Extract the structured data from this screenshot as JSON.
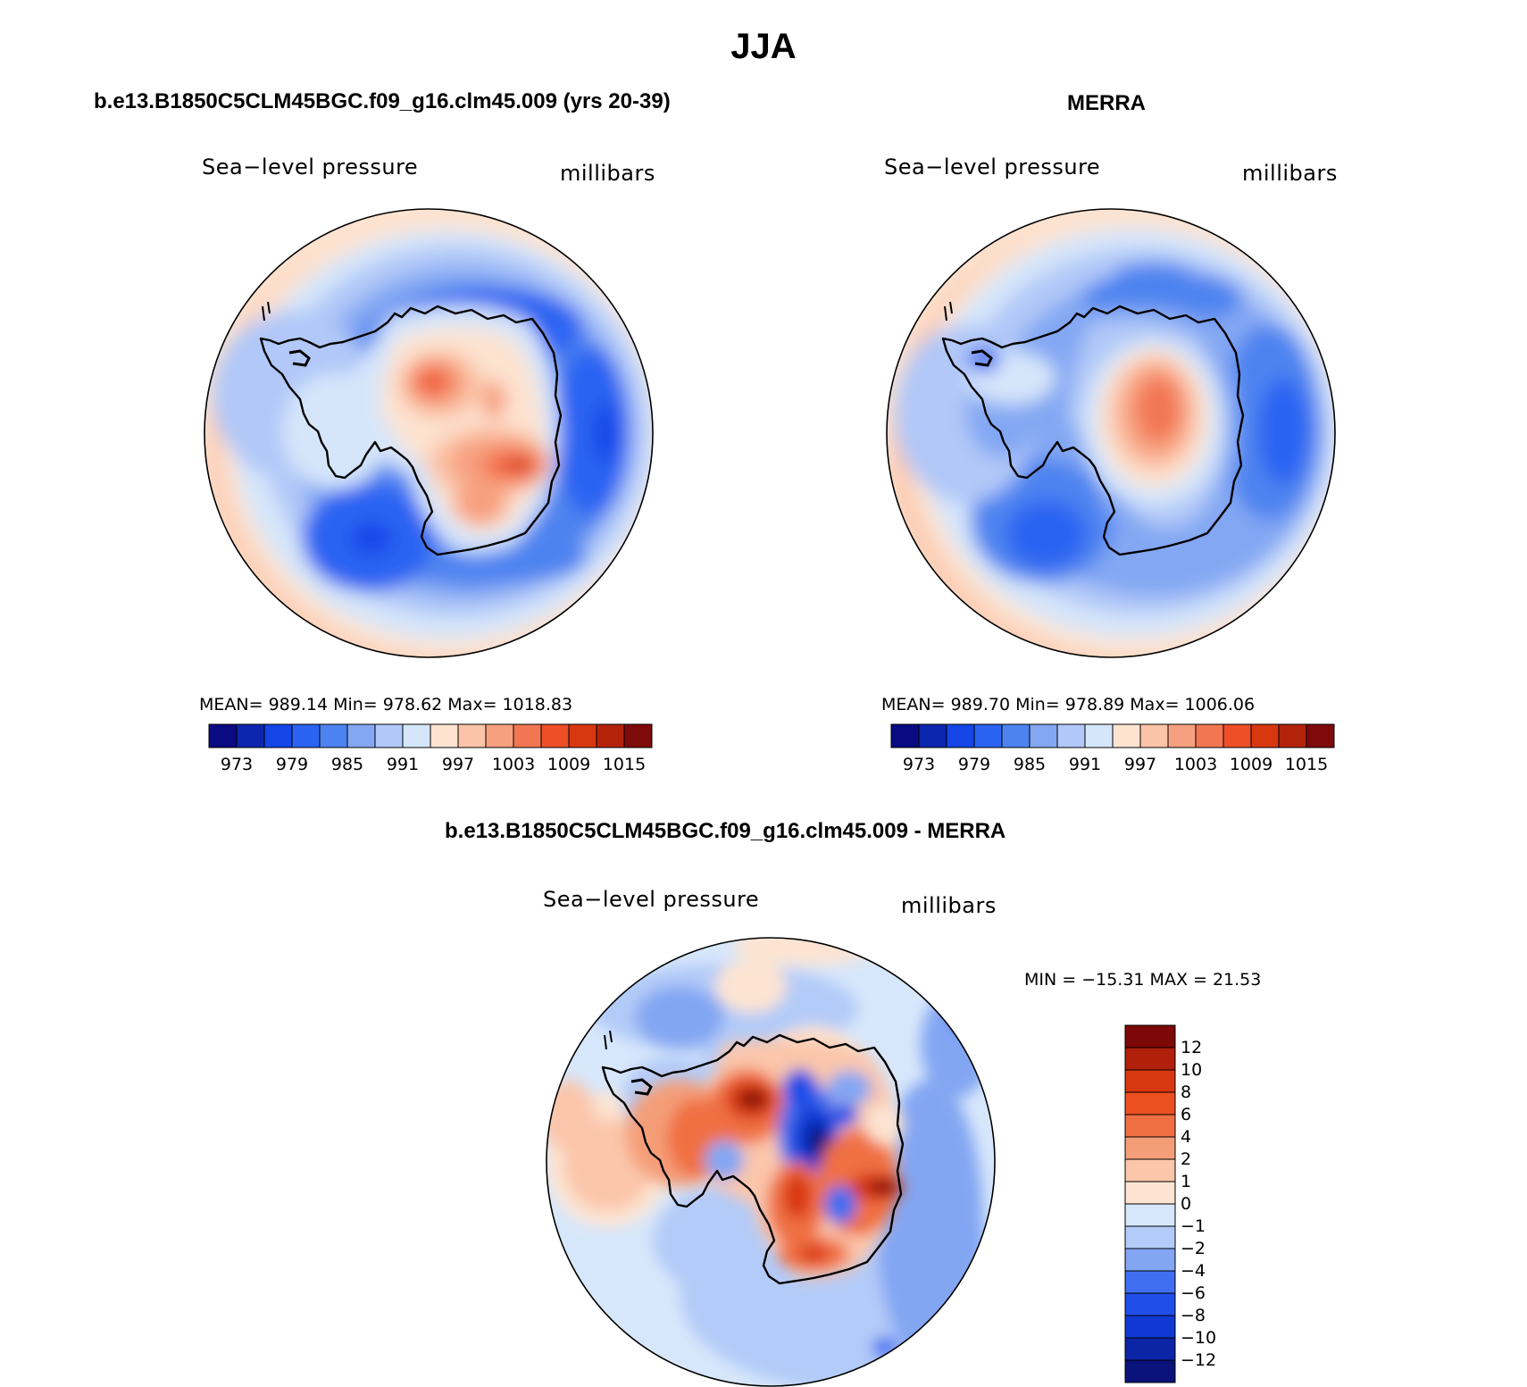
{
  "page": {
    "title": "JJA"
  },
  "panels": [
    {
      "id": "model",
      "title": "b.e13.B1850C5CLM45BGC.f09_g16.clm45.009 (yrs 20-39)",
      "left_label": "Sea−level pressure",
      "right_label": "millibars",
      "stats": "MEAN=  989.14    Min=  978.62    Max=  1018.83"
    },
    {
      "id": "obs",
      "title": "MERRA",
      "left_label": "Sea−level pressure",
      "right_label": "millibars",
      "stats": "MEAN=  989.70    Min=  978.89    Max=  1006.06"
    },
    {
      "id": "diff",
      "title": "b.e13.B1850C5CLM45BGC.f09_g16.clm45.009 - MERRA",
      "left_label": "Sea−level pressure",
      "right_label": "millibars",
      "stats": "MIN  =  −15.31  MAX  =    21.53"
    }
  ],
  "colors": {
    "abs_scale": [
      "#0a0a82",
      "#0d26b0",
      "#1446e8",
      "#2a63f2",
      "#4d83f0",
      "#83a7f3",
      "#b1c8f8",
      "#d6e6fa",
      "#fde3d0",
      "#fbc3a7",
      "#f7a07f",
      "#f27652",
      "#ee4f26",
      "#d8380f",
      "#b3230a",
      "#7f0a0a"
    ],
    "diff_scale": [
      "#09137a",
      "#0c24a6",
      "#1038d2",
      "#1f4ee8",
      "#3f6ef0",
      "#83a6f3",
      "#b3cbf8",
      "#d7e7fb",
      "#fde4d2",
      "#fbc6ab",
      "#f49e78",
      "#f06f42",
      "#ed5021",
      "#d8380f",
      "#b0200a",
      "#7d0808"
    ],
    "land_outline": "#000000"
  },
  "chart_data": [
    {
      "type": "heatmap",
      "projection": "south-polar-stereographic",
      "title": "b.e13.B1850C5CLM45BGC.f09_g16.clm45.009 (yrs 20-39)",
      "variable": "Sea−level pressure",
      "units": "millibars",
      "mean": 989.14,
      "min": 978.62,
      "max": 1018.83,
      "colorbar_ticks": [
        "973",
        "979",
        "985",
        "991",
        "997",
        "1003",
        "1009",
        "1015"
      ],
      "colorbar_levels": 16,
      "colorbar_orientation": "horizontal"
    },
    {
      "type": "heatmap",
      "projection": "south-polar-stereographic",
      "title": "MERRA",
      "variable": "Sea−level pressure",
      "units": "millibars",
      "mean": 989.7,
      "min": 978.89,
      "max": 1006.06,
      "colorbar_ticks": [
        "973",
        "979",
        "985",
        "991",
        "997",
        "1003",
        "1009",
        "1015"
      ],
      "colorbar_levels": 16,
      "colorbar_orientation": "horizontal"
    },
    {
      "type": "heatmap",
      "projection": "south-polar-stereographic",
      "title": "b.e13.B1850C5CLM45BGC.f09_g16.clm45.009 - MERRA",
      "variable": "Sea−level pressure",
      "units": "millibars",
      "min": -15.31,
      "max": 21.53,
      "colorbar_ticks": [
        "12",
        "10",
        "8",
        "6",
        "4",
        "2",
        "1",
        "0",
        "−1",
        "−2",
        "−4",
        "−6",
        "−8",
        "−10",
        "−12"
      ],
      "colorbar_levels": 16,
      "colorbar_orientation": "vertical"
    }
  ]
}
